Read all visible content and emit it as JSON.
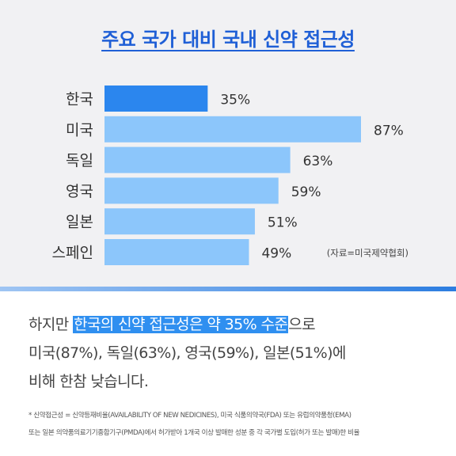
{
  "chart_data": {
    "type": "bar",
    "orientation": "horizontal",
    "title": "주요 국가 대비 국내 신약 접근성",
    "categories": [
      "한국",
      "미국",
      "독일",
      "영국",
      "일본",
      "스페인"
    ],
    "values": [
      35,
      87,
      63,
      59,
      51,
      49
    ],
    "value_labels": [
      "35%",
      "87%",
      "63%",
      "59%",
      "51%",
      "49%"
    ],
    "highlight_category": "한국",
    "source_note": "(자료=미국제약협회)",
    "colors": {
      "highlight": "#2b86ee",
      "default": "#8cc6fb"
    },
    "grid": false,
    "legend": "none"
  },
  "summary": {
    "part1": "하지만 ",
    "highlight": "한국의 신약 접근성은 약 35% 수준",
    "part2": "으로",
    "line2": "미국(87%), 독일(63%), 영국(59%), 일본(51%)에",
    "line3": "비해 한참 낮습니다."
  },
  "footnote": {
    "line1": "* 신약접근성 = 신약등재비율(AVAILABILITY OF NEW NEDICINES), 미국 식품의약국(FDA) 또는 유럽의약품청(EMA)",
    "line2": "또는 일본 의약품의료기기종합기구(PMDA)에서 허가받아 1개국 이상 발매한 성분 중 각 국가별 도입(허가 또는 발매)한 비율"
  }
}
